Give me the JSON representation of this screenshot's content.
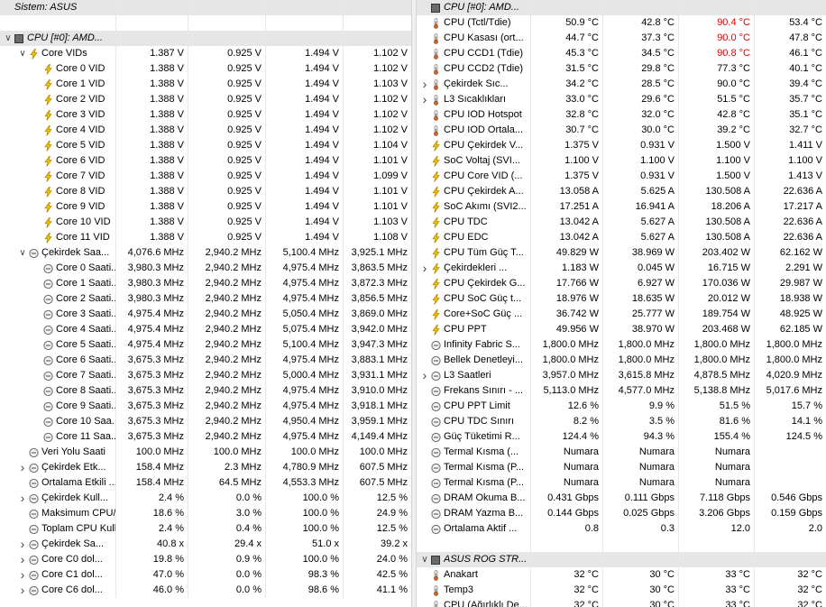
{
  "left": {
    "cols": [
      128,
      208,
      294,
      380,
      456
    ],
    "rows": [
      {
        "t": "h",
        "ind": 0,
        "exp": "",
        "ico": "",
        "name": "Sistem: ASUS",
        "v": [
          "",
          "",
          "",
          ""
        ]
      },
      {
        "t": "gap"
      },
      {
        "t": "h",
        "ind": 0,
        "exp": "v",
        "ico": "chip",
        "name": "CPU [#0]: AMD...",
        "v": [
          "",
          "",
          "",
          ""
        ]
      },
      {
        "t": "r",
        "ind": 1,
        "exp": "v",
        "ico": "bolt",
        "name": "Core VIDs",
        "v": [
          "1.387 V",
          "0.925 V",
          "1.494 V",
          "1.102 V"
        ]
      },
      {
        "t": "r",
        "ind": 2,
        "exp": "",
        "ico": "bolt",
        "name": "Core 0 VID",
        "v": [
          "1.388 V",
          "0.925 V",
          "1.494 V",
          "1.102 V"
        ]
      },
      {
        "t": "r",
        "ind": 2,
        "exp": "",
        "ico": "bolt",
        "name": "Core 1 VID",
        "v": [
          "1.388 V",
          "0.925 V",
          "1.494 V",
          "1.103 V"
        ]
      },
      {
        "t": "r",
        "ind": 2,
        "exp": "",
        "ico": "bolt",
        "name": "Core 2 VID",
        "v": [
          "1.388 V",
          "0.925 V",
          "1.494 V",
          "1.102 V"
        ]
      },
      {
        "t": "r",
        "ind": 2,
        "exp": "",
        "ico": "bolt",
        "name": "Core 3 VID",
        "v": [
          "1.388 V",
          "0.925 V",
          "1.494 V",
          "1.102 V"
        ]
      },
      {
        "t": "r",
        "ind": 2,
        "exp": "",
        "ico": "bolt",
        "name": "Core 4 VID",
        "v": [
          "1.388 V",
          "0.925 V",
          "1.494 V",
          "1.102 V"
        ]
      },
      {
        "t": "r",
        "ind": 2,
        "exp": "",
        "ico": "bolt",
        "name": "Core 5 VID",
        "v": [
          "1.388 V",
          "0.925 V",
          "1.494 V",
          "1.104 V"
        ]
      },
      {
        "t": "r",
        "ind": 2,
        "exp": "",
        "ico": "bolt",
        "name": "Core 6 VID",
        "v": [
          "1.388 V",
          "0.925 V",
          "1.494 V",
          "1.101 V"
        ]
      },
      {
        "t": "r",
        "ind": 2,
        "exp": "",
        "ico": "bolt",
        "name": "Core 7 VID",
        "v": [
          "1.388 V",
          "0.925 V",
          "1.494 V",
          "1.099 V"
        ]
      },
      {
        "t": "r",
        "ind": 2,
        "exp": "",
        "ico": "bolt",
        "name": "Core 8 VID",
        "v": [
          "1.388 V",
          "0.925 V",
          "1.494 V",
          "1.101 V"
        ]
      },
      {
        "t": "r",
        "ind": 2,
        "exp": "",
        "ico": "bolt",
        "name": "Core 9 VID",
        "v": [
          "1.388 V",
          "0.925 V",
          "1.494 V",
          "1.101 V"
        ]
      },
      {
        "t": "r",
        "ind": 2,
        "exp": "",
        "ico": "bolt",
        "name": "Core 10 VID",
        "v": [
          "1.388 V",
          "0.925 V",
          "1.494 V",
          "1.103 V"
        ]
      },
      {
        "t": "r",
        "ind": 2,
        "exp": "",
        "ico": "bolt",
        "name": "Core 11 VID",
        "v": [
          "1.388 V",
          "0.925 V",
          "1.494 V",
          "1.108 V"
        ]
      },
      {
        "t": "r",
        "ind": 1,
        "exp": "v",
        "ico": "clock",
        "name": "Çekirdek Saa...",
        "v": [
          "4,076.6 MHz",
          "2,940.2 MHz",
          "5,100.4 MHz",
          "3,925.1 MHz"
        ]
      },
      {
        "t": "r",
        "ind": 2,
        "exp": "",
        "ico": "clock",
        "name": "Core 0 Saati...",
        "v": [
          "3,980.3 MHz",
          "2,940.2 MHz",
          "4,975.4 MHz",
          "3,863.5 MHz"
        ]
      },
      {
        "t": "r",
        "ind": 2,
        "exp": "",
        "ico": "clock",
        "name": "Core 1 Saati...",
        "v": [
          "3,980.3 MHz",
          "2,940.2 MHz",
          "4,975.4 MHz",
          "3,872.3 MHz"
        ]
      },
      {
        "t": "r",
        "ind": 2,
        "exp": "",
        "ico": "clock",
        "name": "Core 2 Saati...",
        "v": [
          "3,980.3 MHz",
          "2,940.2 MHz",
          "4,975.4 MHz",
          "3,856.5 MHz"
        ]
      },
      {
        "t": "r",
        "ind": 2,
        "exp": "",
        "ico": "clock",
        "name": "Core 3 Saati...",
        "v": [
          "4,975.4 MHz",
          "2,940.2 MHz",
          "5,050.4 MHz",
          "3,869.0 MHz"
        ]
      },
      {
        "t": "r",
        "ind": 2,
        "exp": "",
        "ico": "clock",
        "name": "Core 4 Saati...",
        "v": [
          "4,975.4 MHz",
          "2,940.2 MHz",
          "5,075.4 MHz",
          "3,942.0 MHz"
        ]
      },
      {
        "t": "r",
        "ind": 2,
        "exp": "",
        "ico": "clock",
        "name": "Core 5 Saati...",
        "v": [
          "4,975.4 MHz",
          "2,940.2 MHz",
          "5,100.4 MHz",
          "3,947.3 MHz"
        ]
      },
      {
        "t": "r",
        "ind": 2,
        "exp": "",
        "ico": "clock",
        "name": "Core 6 Saati...",
        "v": [
          "3,675.3 MHz",
          "2,940.2 MHz",
          "4,975.4 MHz",
          "3,883.1 MHz"
        ]
      },
      {
        "t": "r",
        "ind": 2,
        "exp": "",
        "ico": "clock",
        "name": "Core 7 Saati...",
        "v": [
          "3,675.3 MHz",
          "2,940.2 MHz",
          "5,000.4 MHz",
          "3,931.1 MHz"
        ]
      },
      {
        "t": "r",
        "ind": 2,
        "exp": "",
        "ico": "clock",
        "name": "Core 8 Saati...",
        "v": [
          "3,675.3 MHz",
          "2,940.2 MHz",
          "4,975.4 MHz",
          "3,910.0 MHz"
        ]
      },
      {
        "t": "r",
        "ind": 2,
        "exp": "",
        "ico": "clock",
        "name": "Core 9 Saati...",
        "v": [
          "3,675.3 MHz",
          "2,940.2 MHz",
          "4,975.4 MHz",
          "3,918.1 MHz"
        ]
      },
      {
        "t": "r",
        "ind": 2,
        "exp": "",
        "ico": "clock",
        "name": "Core 10 Saa...",
        "v": [
          "3,675.3 MHz",
          "2,940.2 MHz",
          "4,950.4 MHz",
          "3,959.1 MHz"
        ]
      },
      {
        "t": "r",
        "ind": 2,
        "exp": "",
        "ico": "clock",
        "name": "Core 11 Saa...",
        "v": [
          "3,675.3 MHz",
          "2,940.2 MHz",
          "4,975.4 MHz",
          "4,149.4 MHz"
        ]
      },
      {
        "t": "r",
        "ind": 1,
        "exp": "",
        "ico": "clock",
        "name": "Veri Yolu Saati",
        "v": [
          "100.0 MHz",
          "100.0 MHz",
          "100.0 MHz",
          "100.0 MHz"
        ]
      },
      {
        "t": "r",
        "ind": 1,
        "exp": ">",
        "ico": "clock",
        "name": "Çekirdek Etk...",
        "v": [
          "158.4 MHz",
          "2.3 MHz",
          "4,780.9 MHz",
          "607.5 MHz"
        ]
      },
      {
        "t": "r",
        "ind": 1,
        "exp": "",
        "ico": "clock",
        "name": "Ortalama Etkili ...",
        "v": [
          "158.4 MHz",
          "64.5 MHz",
          "4,553.3 MHz",
          "607.5 MHz"
        ]
      },
      {
        "t": "r",
        "ind": 1,
        "exp": ">",
        "ico": "clock",
        "name": "Çekirdek Kull...",
        "v": [
          "2.4 %",
          "0.0 %",
          "100.0 %",
          "12.5 %"
        ]
      },
      {
        "t": "r",
        "ind": 1,
        "exp": "",
        "ico": "clock",
        "name": "Maksimum CPU/...",
        "v": [
          "18.6 %",
          "3.0 %",
          "100.0 %",
          "24.9 %"
        ]
      },
      {
        "t": "r",
        "ind": 1,
        "exp": "",
        "ico": "clock",
        "name": "Toplam CPU Kull...",
        "v": [
          "2.4 %",
          "0.4 %",
          "100.0 %",
          "12.5 %"
        ]
      },
      {
        "t": "r",
        "ind": 1,
        "exp": ">",
        "ico": "clock",
        "name": "Çekirdek Sa...",
        "v": [
          "40.8 x",
          "29.4 x",
          "51.0 x",
          "39.2 x"
        ]
      },
      {
        "t": "r",
        "ind": 1,
        "exp": ">",
        "ico": "clock",
        "name": "Core C0 dol...",
        "v": [
          "19.8 %",
          "0.9 %",
          "100.0 %",
          "24.0 %"
        ]
      },
      {
        "t": "r",
        "ind": 1,
        "exp": ">",
        "ico": "clock",
        "name": "Core C1 dol...",
        "v": [
          "47.0 %",
          "0.0 %",
          "98.3 %",
          "42.5 %"
        ]
      },
      {
        "t": "r",
        "ind": 1,
        "exp": ">",
        "ico": "clock",
        "name": "Core C6 dol...",
        "v": [
          "46.0 %",
          "0.0 %",
          "98.6 %",
          "41.1 %"
        ]
      }
    ]
  },
  "right": {
    "cols": [
      126,
      206,
      290,
      374,
      454
    ],
    "rows": [
      {
        "t": "h",
        "ind": 0,
        "exp": "",
        "ico": "chip",
        "name": "CPU [#0]: AMD...",
        "v": [
          "",
          "",
          "",
          ""
        ]
      },
      {
        "t": "r",
        "ind": 0,
        "exp": "",
        "ico": "therm",
        "name": "CPU (Tctl/Tdie)",
        "v": [
          "50.9 °C",
          "42.8 °C",
          "90.4 °C",
          "53.4 °C"
        ],
        "red": [
          2
        ]
      },
      {
        "t": "r",
        "ind": 0,
        "exp": "",
        "ico": "therm",
        "name": "CPU Kasası (ort...",
        "v": [
          "44.7 °C",
          "37.3 °C",
          "90.0 °C",
          "47.8 °C"
        ],
        "red": [
          2
        ]
      },
      {
        "t": "r",
        "ind": 0,
        "exp": "",
        "ico": "therm",
        "name": "CPU CCD1 (Tdie)",
        "v": [
          "45.3 °C",
          "34.5 °C",
          "90.8 °C",
          "46.1 °C"
        ],
        "red": [
          2
        ]
      },
      {
        "t": "r",
        "ind": 0,
        "exp": "",
        "ico": "therm",
        "name": "CPU CCD2 (Tdie)",
        "v": [
          "31.5 °C",
          "29.8 °C",
          "77.3 °C",
          "40.1 °C"
        ]
      },
      {
        "t": "r",
        "ind": 0,
        "exp": ">",
        "ico": "therm",
        "name": "Çekirdek Sıc...",
        "v": [
          "34.2 °C",
          "28.5 °C",
          "90.0 °C",
          "39.4 °C"
        ]
      },
      {
        "t": "r",
        "ind": 0,
        "exp": ">",
        "ico": "therm",
        "name": "L3 Sıcaklıkları",
        "v": [
          "33.0 °C",
          "29.6 °C",
          "51.5 °C",
          "35.7 °C"
        ]
      },
      {
        "t": "r",
        "ind": 0,
        "exp": "",
        "ico": "therm",
        "name": "CPU IOD Hotspot",
        "v": [
          "32.8 °C",
          "32.0 °C",
          "42.8 °C",
          "35.1 °C"
        ]
      },
      {
        "t": "r",
        "ind": 0,
        "exp": "",
        "ico": "therm",
        "name": "CPU IOD Ortala...",
        "v": [
          "30.7 °C",
          "30.0 °C",
          "39.2 °C",
          "32.7 °C"
        ]
      },
      {
        "t": "r",
        "ind": 0,
        "exp": "",
        "ico": "bolt",
        "name": "CPU Çekirdek V...",
        "v": [
          "1.375 V",
          "0.931 V",
          "1.500 V",
          "1.411 V"
        ]
      },
      {
        "t": "r",
        "ind": 0,
        "exp": "",
        "ico": "bolt",
        "name": "SoC Voltaj (SVI...",
        "v": [
          "1.100 V",
          "1.100 V",
          "1.100 V",
          "1.100 V"
        ]
      },
      {
        "t": "r",
        "ind": 0,
        "exp": "",
        "ico": "bolt",
        "name": "CPU Core VID (...",
        "v": [
          "1.375 V",
          "0.931 V",
          "1.500 V",
          "1.413 V"
        ]
      },
      {
        "t": "r",
        "ind": 0,
        "exp": "",
        "ico": "bolt",
        "name": "CPU Çekirdek A...",
        "v": [
          "13.058 A",
          "5.625 A",
          "130.508 A",
          "22.636 A"
        ]
      },
      {
        "t": "r",
        "ind": 0,
        "exp": "",
        "ico": "bolt",
        "name": "SoC Akımı (SVI2...",
        "v": [
          "17.251 A",
          "16.941 A",
          "18.206 A",
          "17.217 A"
        ]
      },
      {
        "t": "r",
        "ind": 0,
        "exp": "",
        "ico": "bolt",
        "name": "CPU TDC",
        "v": [
          "13.042 A",
          "5.627 A",
          "130.508 A",
          "22.636 A"
        ]
      },
      {
        "t": "r",
        "ind": 0,
        "exp": "",
        "ico": "bolt",
        "name": "CPU EDC",
        "v": [
          "13.042 A",
          "5.627 A",
          "130.508 A",
          "22.636 A"
        ]
      },
      {
        "t": "r",
        "ind": 0,
        "exp": "",
        "ico": "bolt",
        "name": "CPU Tüm Güç T...",
        "v": [
          "49.829 W",
          "38.969 W",
          "203.402 W",
          "62.162 W"
        ]
      },
      {
        "t": "r",
        "ind": 0,
        "exp": ">",
        "ico": "bolt",
        "name": "Çekirdekleri ...",
        "v": [
          "1.183 W",
          "0.045 W",
          "16.715 W",
          "2.291 W"
        ]
      },
      {
        "t": "r",
        "ind": 0,
        "exp": "",
        "ico": "bolt",
        "name": "CPU Çekirdek G...",
        "v": [
          "17.766 W",
          "6.927 W",
          "170.036 W",
          "29.987 W"
        ]
      },
      {
        "t": "r",
        "ind": 0,
        "exp": "",
        "ico": "bolt",
        "name": "CPU SoC Güç t...",
        "v": [
          "18.976 W",
          "18.635 W",
          "20.012 W",
          "18.938 W"
        ]
      },
      {
        "t": "r",
        "ind": 0,
        "exp": "",
        "ico": "bolt",
        "name": "Core+SoC Güç ...",
        "v": [
          "36.742 W",
          "25.777 W",
          "189.754 W",
          "48.925 W"
        ]
      },
      {
        "t": "r",
        "ind": 0,
        "exp": "",
        "ico": "bolt",
        "name": "CPU PPT",
        "v": [
          "49.956 W",
          "38.970 W",
          "203.468 W",
          "62.185 W"
        ]
      },
      {
        "t": "r",
        "ind": 0,
        "exp": "",
        "ico": "clock",
        "name": "Infinity Fabric S...",
        "v": [
          "1,800.0 MHz",
          "1,800.0 MHz",
          "1,800.0 MHz",
          "1,800.0 MHz"
        ]
      },
      {
        "t": "r",
        "ind": 0,
        "exp": "",
        "ico": "clock",
        "name": "Bellek Denetleyi...",
        "v": [
          "1,800.0 MHz",
          "1,800.0 MHz",
          "1,800.0 MHz",
          "1,800.0 MHz"
        ]
      },
      {
        "t": "r",
        "ind": 0,
        "exp": ">",
        "ico": "clock",
        "name": "L3 Saatleri",
        "v": [
          "3,957.0 MHz",
          "3,615.8 MHz",
          "4,878.5 MHz",
          "4,020.9 MHz"
        ]
      },
      {
        "t": "r",
        "ind": 0,
        "exp": "",
        "ico": "clock",
        "name": "Frekans Sınırı - ...",
        "v": [
          "5,113.0 MHz",
          "4,577.0 MHz",
          "5,138.8 MHz",
          "5,017.6 MHz"
        ]
      },
      {
        "t": "r",
        "ind": 0,
        "exp": "",
        "ico": "clock",
        "name": "CPU PPT Limit",
        "v": [
          "12.6 %",
          "9.9 %",
          "51.5 %",
          "15.7 %"
        ]
      },
      {
        "t": "r",
        "ind": 0,
        "exp": "",
        "ico": "clock",
        "name": "CPU TDC Sınırı",
        "v": [
          "8.2 %",
          "3.5 %",
          "81.6 %",
          "14.1 %"
        ]
      },
      {
        "t": "r",
        "ind": 0,
        "exp": "",
        "ico": "clock",
        "name": "Güç Tüketimi R...",
        "v": [
          "124.4 %",
          "94.3 %",
          "155.4 %",
          "124.5 %"
        ]
      },
      {
        "t": "r",
        "ind": 0,
        "exp": "",
        "ico": "clock",
        "name": "Termal Kısma (...",
        "v": [
          "Numara",
          "Numara",
          "Numara",
          ""
        ]
      },
      {
        "t": "r",
        "ind": 0,
        "exp": "",
        "ico": "clock",
        "name": "Termal Kısma (P...",
        "v": [
          "Numara",
          "Numara",
          "Numara",
          ""
        ]
      },
      {
        "t": "r",
        "ind": 0,
        "exp": "",
        "ico": "clock",
        "name": "Termal Kısma (P...",
        "v": [
          "Numara",
          "Numara",
          "Numara",
          ""
        ]
      },
      {
        "t": "r",
        "ind": 0,
        "exp": "",
        "ico": "clock",
        "name": "DRAM Okuma B...",
        "v": [
          "0.431 Gbps",
          "0.111 Gbps",
          "7.118 Gbps",
          "0.546 Gbps"
        ]
      },
      {
        "t": "r",
        "ind": 0,
        "exp": "",
        "ico": "clock",
        "name": "DRAM Yazma B...",
        "v": [
          "0.144 Gbps",
          "0.025 Gbps",
          "3.206 Gbps",
          "0.159 Gbps"
        ]
      },
      {
        "t": "r",
        "ind": 0,
        "exp": "",
        "ico": "clock",
        "name": "Ortalama Aktif ...",
        "v": [
          "0.8",
          "0.3",
          "12.0",
          "2.0"
        ]
      },
      {
        "t": "gap"
      },
      {
        "t": "h",
        "ind": 0,
        "exp": "v",
        "ico": "chip",
        "name": "ASUS ROG STR...",
        "v": [
          "",
          "",
          "",
          ""
        ]
      },
      {
        "t": "r",
        "ind": 0,
        "exp": "",
        "ico": "therm",
        "name": "Anakart",
        "v": [
          "32 °C",
          "30 °C",
          "33 °C",
          "32 °C"
        ]
      },
      {
        "t": "r",
        "ind": 0,
        "exp": "",
        "ico": "therm",
        "name": "Temp3",
        "v": [
          "32 °C",
          "30 °C",
          "33 °C",
          "32 °C"
        ]
      },
      {
        "t": "r",
        "ind": 0,
        "exp": "",
        "ico": "therm",
        "name": "CPU (Ağırlıklı De...",
        "v": [
          "32 °C",
          "30 °C",
          "33 °C",
          "32 °C"
        ]
      }
    ]
  },
  "colors": {
    "header_bg": "#e6e6e6",
    "warn": "#e00000",
    "bolt": "#f5b800",
    "clock": "#666666",
    "therm": "#c96a2a"
  }
}
